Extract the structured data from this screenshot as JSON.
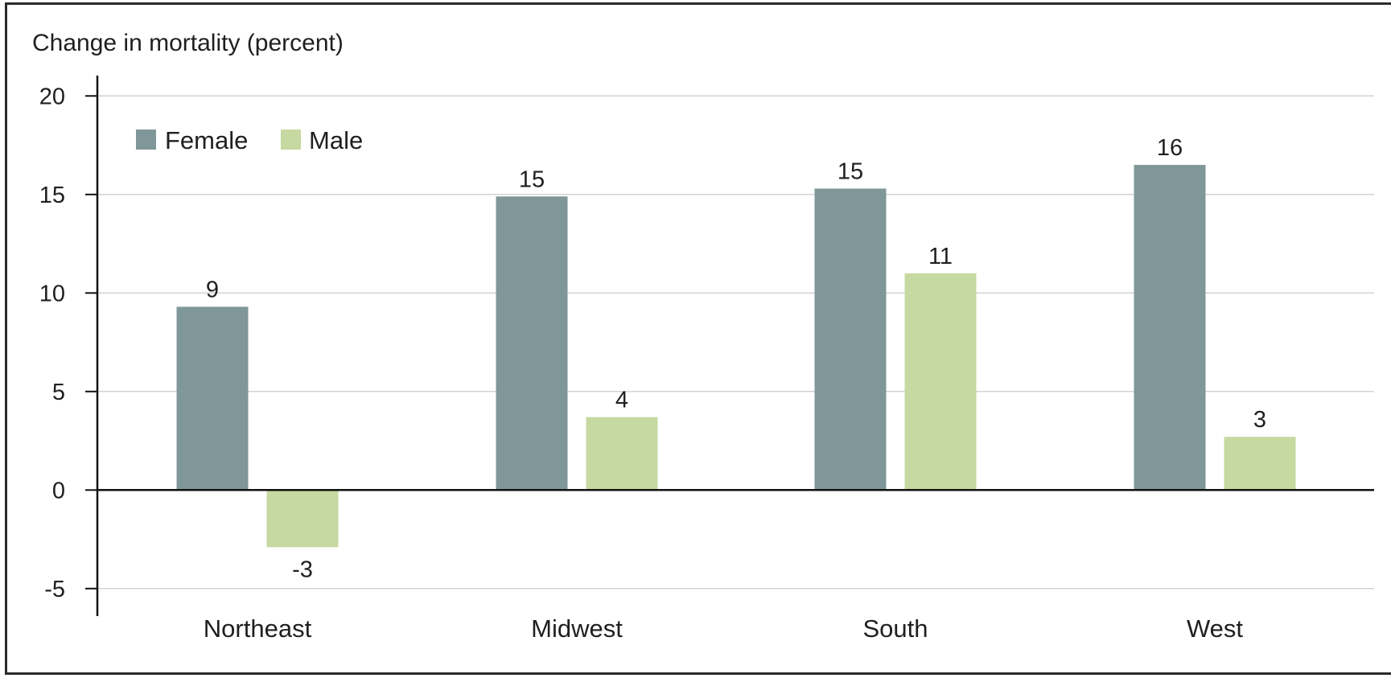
{
  "chart_data": {
    "type": "bar",
    "title": "",
    "ylabel": "Change in mortality (percent)",
    "xlabel": "",
    "categories": [
      "Northeast",
      "Midwest",
      "South",
      "West"
    ],
    "series": [
      {
        "name": "Female",
        "values": [
          9.3,
          14.9,
          15.3,
          16.5
        ],
        "labels": [
          "9",
          "15",
          "15",
          "16"
        ],
        "color": "#7f9799"
      },
      {
        "name": "Male",
        "values": [
          -2.9,
          3.7,
          11.0,
          2.7
        ],
        "labels": [
          "-3",
          "4",
          "11",
          "3"
        ],
        "color": "#c6d9a0"
      }
    ],
    "ylim": [
      -6.2,
      20.8
    ],
    "yticks": [
      20,
      15,
      10,
      5,
      0,
      -5
    ],
    "ytick_labels": [
      "20",
      "15",
      "10",
      "5",
      "0",
      "-5"
    ],
    "grid": true,
    "legend_position": "top-left"
  }
}
